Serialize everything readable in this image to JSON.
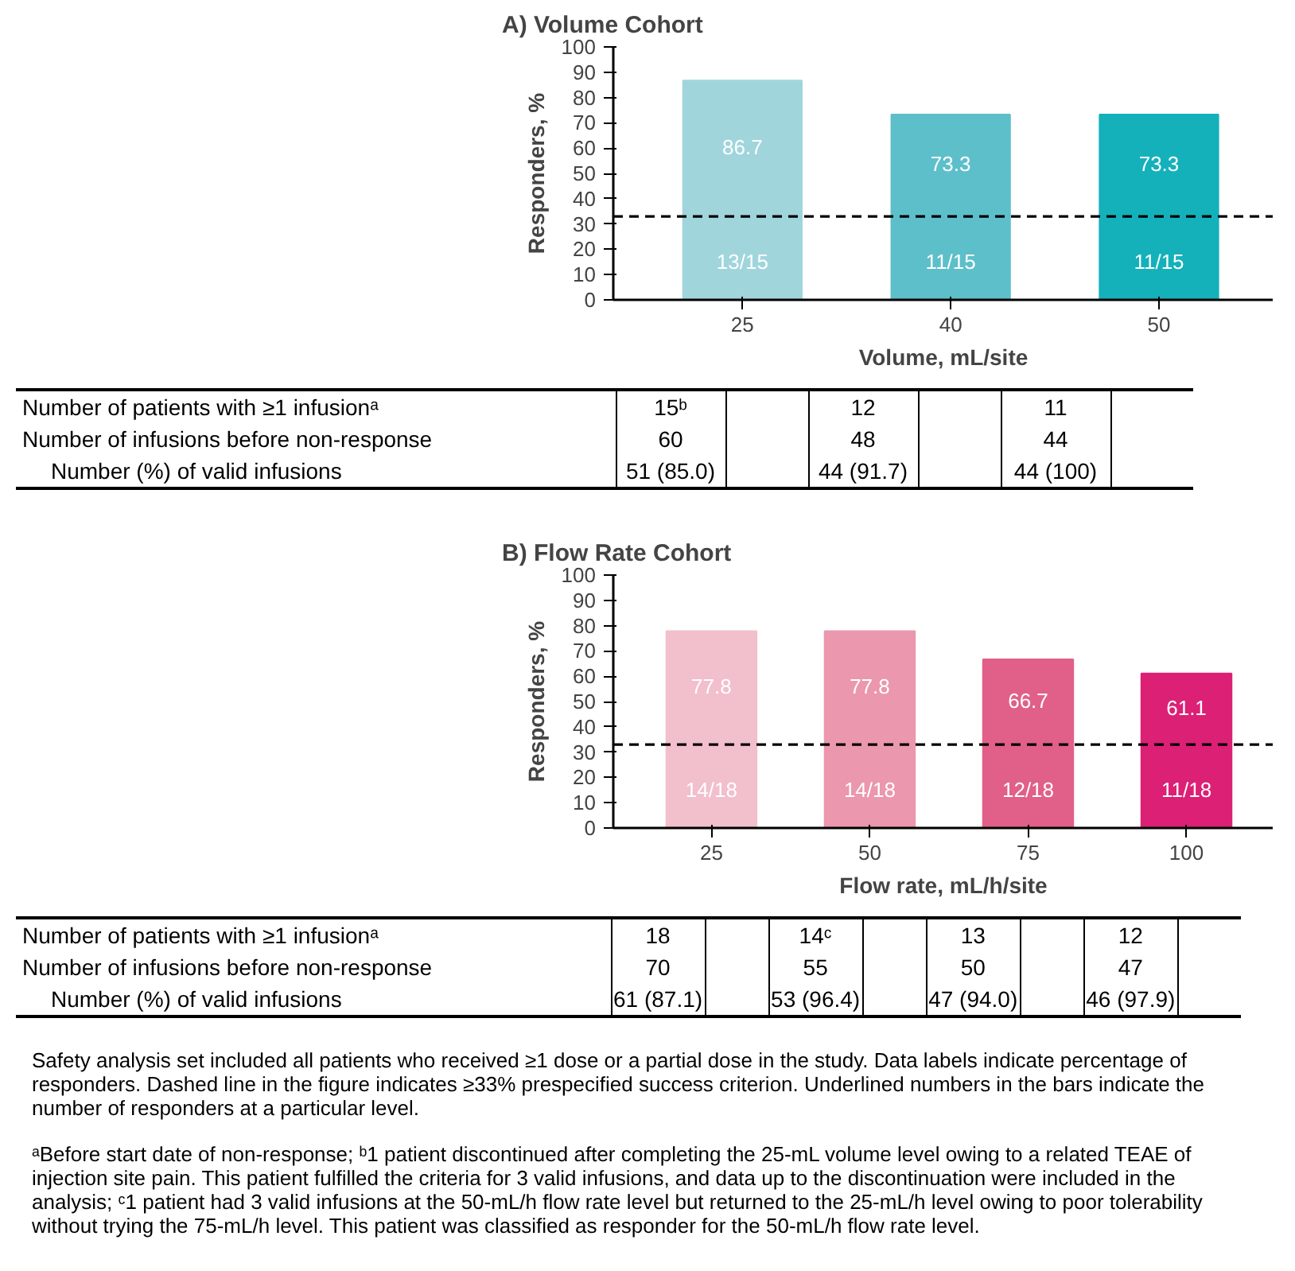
{
  "chart_data": [
    {
      "type": "bar",
      "title": "A) Volume Cohort",
      "xlabel": "Volume, mL/site",
      "ylabel": "Responders, %",
      "categories": [
        "25",
        "40",
        "50"
      ],
      "values": [
        86.7,
        73.3,
        73.3
      ],
      "colors": [
        "#a0d5dc",
        "#5dbfca",
        "#14b1bb"
      ],
      "ylim": [
        0,
        100
      ],
      "yticks": [
        0,
        10,
        20,
        30,
        40,
        50,
        60,
        70,
        80,
        90,
        100
      ],
      "data_labels": true,
      "grid": false,
      "ref_lines": [
        {
          "axis": "y",
          "value": 33,
          "line_style": "dashed",
          "color": "#000000"
        }
      ],
      "annotations": [
        "13/15",
        "11/15",
        "11/15",
        "Number of patients with ≥1 infusionᵃ",
        "Number of infusions before non-response",
        "Number (%) of valid infusions",
        "15ᵇ",
        "12",
        "11",
        "60",
        "48",
        "44",
        "51 (85.0)",
        "44 (91.7)",
        "44 (100)"
      ]
    },
    {
      "type": "bar",
      "title": "B) Flow Rate Cohort",
      "xlabel": "Flow rate, mL/h/site",
      "ylabel": "Responders, %",
      "categories": [
        "25",
        "50",
        "75",
        "100"
      ],
      "values": [
        77.8,
        77.8,
        66.7,
        61.1
      ],
      "colors": [
        "#f2bfcc",
        "#eb97ae",
        "#e06089",
        "#dc2075"
      ],
      "ylim": [
        0,
        100
      ],
      "yticks": [
        0,
        10,
        20,
        30,
        40,
        50,
        60,
        70,
        80,
        90,
        100
      ],
      "data_labels": true,
      "grid": false,
      "ref_lines": [
        {
          "axis": "y",
          "value": 33,
          "line_style": "dashed",
          "color": "#000000"
        }
      ],
      "annotations": [
        "14/18",
        "14/18",
        "12/18",
        "11/18",
        "Number of patients with ≥1 infusionᵃ",
        "Number of infusions before non-response",
        "Number (%) of valid infusions",
        "18",
        "14ᶜ",
        "13",
        "12",
        "70",
        "55",
        "50",
        "47",
        "61 (87.1)",
        "53 (96.4)",
        "47 (94.0)",
        "46 (97.9)",
        "Safety analysis set included all patients who received ≥1 dose or a partial dose in the study. Data labels indicate percentage of responders. Dashed line in the figure indicates ≥33% prespecified success criterion. Underlined numbers in the bars indicate the number of responders at a particular level.",
        "ᵃBefore start date of non-response; ᵇ1 patient discontinued after completing the 25-mL volume level owing to a related TEAE of injection site pain. This patient fulfilled the criteria for 3 valid infusions, and data up to the discontinuation were included in the analysis; ᶜ1 patient had 3 valid infusions at the 50-mL/h flow rate level but returned to the 25-mL/h level owing to poor tolerability without trying the 75-mL/h level. This patient was classified as responder for the 50-mL/h flow rate level."
      ]
    }
  ]
}
